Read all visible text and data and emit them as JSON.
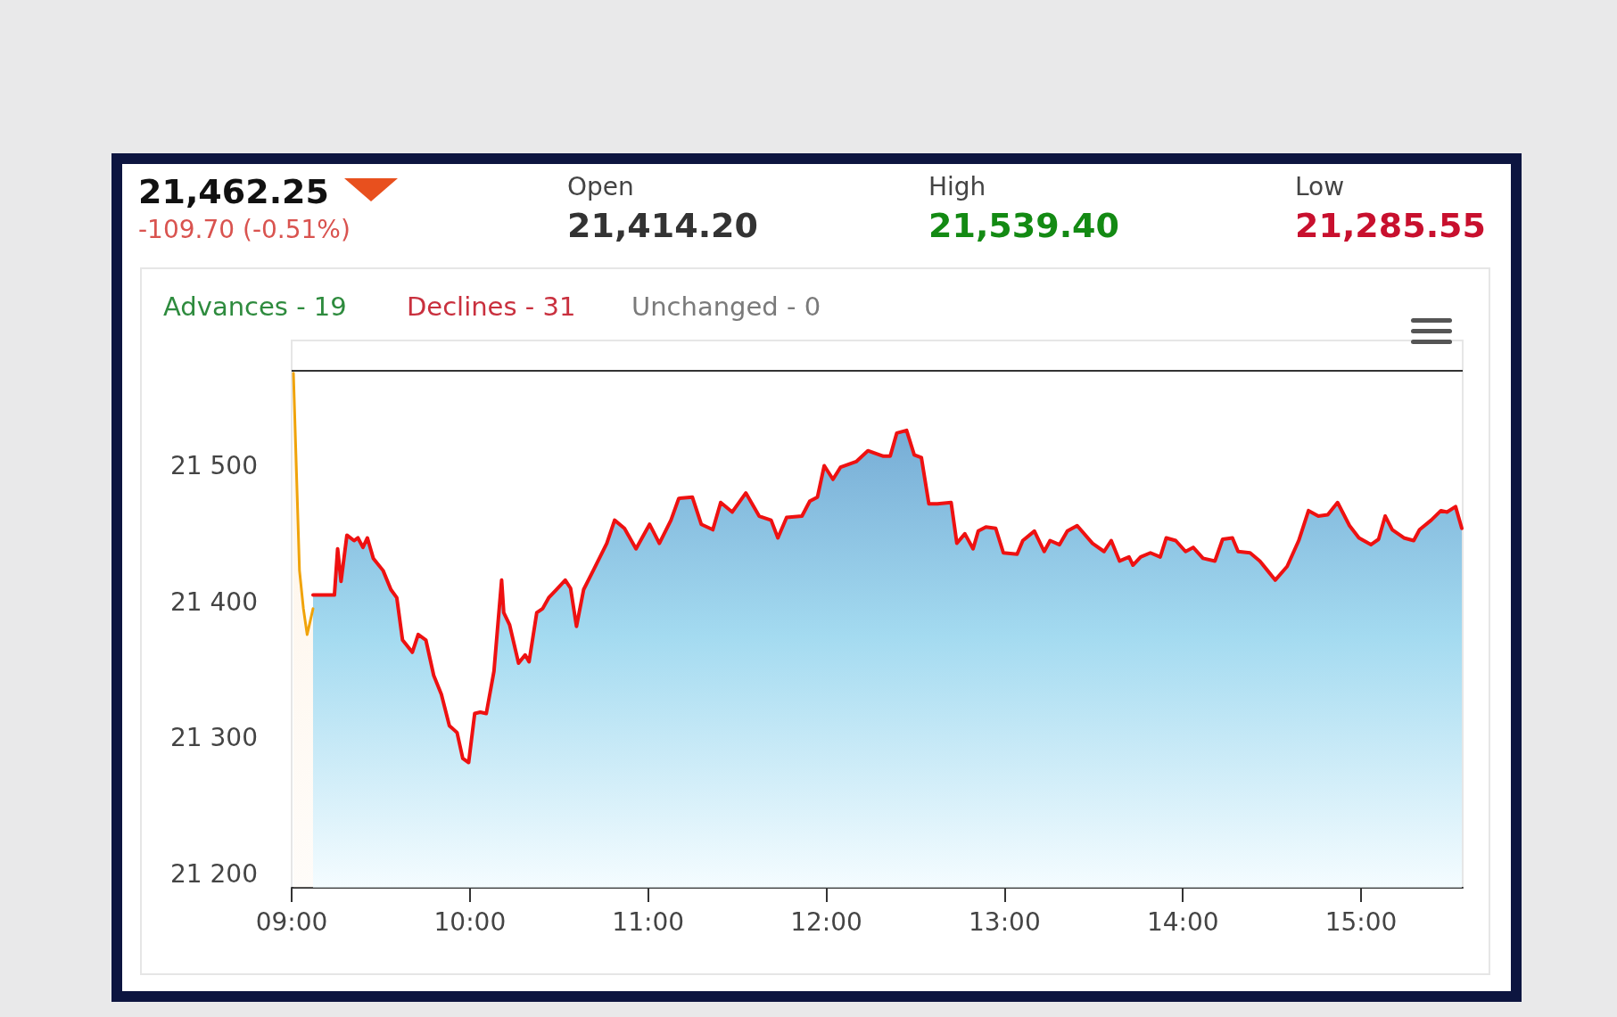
{
  "chart_data": {
    "type": "area",
    "title": "21,462.25",
    "subtitle": "-109.70 (-0.51%)",
    "annotations": [
      "Open",
      "21,414.20",
      "High",
      "21,539.40",
      "Low",
      "21,285.55",
      "Advances - 19",
      "Declines - 31",
      "Unchanged - 0"
    ],
    "xlim": [
      9,
      15.57
    ],
    "ylim": [
      21190,
      21592
    ],
    "xticks": [
      {
        "value": 9,
        "label": "09:00"
      },
      {
        "value": 10,
        "label": "10:00"
      },
      {
        "value": 11,
        "label": "11:00"
      },
      {
        "value": 12,
        "label": "12:00"
      },
      {
        "value": 13,
        "label": "13:00"
      },
      {
        "value": 14,
        "label": "14:00"
      },
      {
        "value": 15,
        "label": "15:00"
      }
    ],
    "yticks": [
      {
        "value": 21200,
        "label": "21 200"
      },
      {
        "value": 21300,
        "label": "21 300"
      },
      {
        "value": 21400,
        "label": "21 400"
      },
      {
        "value": 21500,
        "label": "21 500"
      }
    ],
    "grid": false,
    "marker": "none",
    "line_style": "solid",
    "ref_lines": [
      {
        "axis": "y",
        "value": 21570,
        "color": "#333333"
      }
    ],
    "series": [
      {
        "color": "#f0a30a",
        "x": [
          9.01,
          9.044,
          9.066,
          9.087,
          9.12
        ],
        "values": [
          21568,
          21423,
          21395,
          21376,
          21395
        ]
      },
      {
        "color": "#ee1111",
        "x": [
          9.12,
          9.24,
          9.258,
          9.277,
          9.31,
          9.35,
          9.372,
          9.4,
          9.425,
          9.458,
          9.513,
          9.557,
          9.59,
          9.622,
          9.677,
          9.71,
          9.753,
          9.797,
          9.84,
          9.885,
          9.928,
          9.96,
          9.993,
          10.027,
          10.058,
          10.092,
          10.135,
          10.178,
          10.19,
          10.223,
          10.273,
          10.31,
          10.332,
          10.375,
          10.408,
          10.442,
          10.485,
          10.535,
          10.565,
          10.598,
          10.638,
          10.692,
          10.768,
          10.812,
          10.867,
          10.932,
          11.008,
          11.063,
          11.128,
          11.172,
          11.248,
          11.298,
          11.363,
          11.407,
          11.472,
          11.548,
          11.623,
          11.69,
          11.728,
          11.777,
          11.863,
          11.907,
          11.95,
          11.988,
          12.037,
          12.08,
          12.167,
          12.233,
          12.32,
          12.358,
          12.395,
          12.45,
          12.493,
          12.533,
          12.575,
          12.623,
          12.7,
          12.732,
          12.777,
          12.823,
          12.852,
          12.895,
          12.95,
          12.993,
          13.07,
          13.102,
          13.167,
          13.222,
          13.255,
          13.308,
          13.352,
          13.407,
          13.493,
          13.558,
          13.598,
          13.645,
          13.698,
          13.72,
          13.763,
          13.818,
          13.873,
          13.907,
          13.96,
          14.015,
          14.058,
          14.113,
          14.18,
          14.223,
          14.278,
          14.31,
          14.377,
          14.432,
          14.475,
          14.518,
          14.585,
          14.65,
          14.705,
          14.76,
          14.813,
          14.868,
          14.935,
          14.988,
          15.055,
          15.098,
          15.135,
          15.175,
          15.24,
          15.295,
          15.328,
          15.393,
          15.448,
          15.482,
          15.53,
          15.565
        ],
        "values": [
          21405,
          21405,
          21439,
          21415,
          21449,
          21445,
          21447,
          21440,
          21447,
          21432,
          21423,
          21409,
          21403,
          21372,
          21363,
          21376,
          21372,
          21346,
          21332,
          21309,
          21304,
          21285,
          21282,
          21318,
          21319,
          21318,
          21349,
          21416,
          21392,
          21383,
          21355,
          21361,
          21356,
          21392,
          21395,
          21403,
          21409,
          21416,
          21410,
          21382,
          21409,
          21423,
          21443,
          21460,
          21454,
          21439,
          21457,
          21443,
          21460,
          21476,
          21477,
          21457,
          21453,
          21473,
          21466,
          21480,
          21463,
          21460,
          21447,
          21462,
          21463,
          21474,
          21477,
          21500,
          21490,
          21499,
          21503,
          21511,
          21507,
          21507,
          21524,
          21526,
          21508,
          21506,
          21472,
          21472,
          21473,
          21443,
          21450,
          21439,
          21452,
          21455,
          21454,
          21436,
          21435,
          21445,
          21452,
          21437,
          21445,
          21442,
          21452,
          21456,
          21443,
          21437,
          21445,
          21430,
          21433,
          21427,
          21433,
          21436,
          21433,
          21447,
          21445,
          21437,
          21440,
          21432,
          21430,
          21446,
          21447,
          21437,
          21436,
          21430,
          21423,
          21416,
          21426,
          21445,
          21467,
          21463,
          21464,
          21473,
          21456,
          21447,
          21442,
          21446,
          21463,
          21453,
          21447,
          21445,
          21453,
          21460,
          21467,
          21466,
          21470,
          21454
        ]
      }
    ]
  }
}
